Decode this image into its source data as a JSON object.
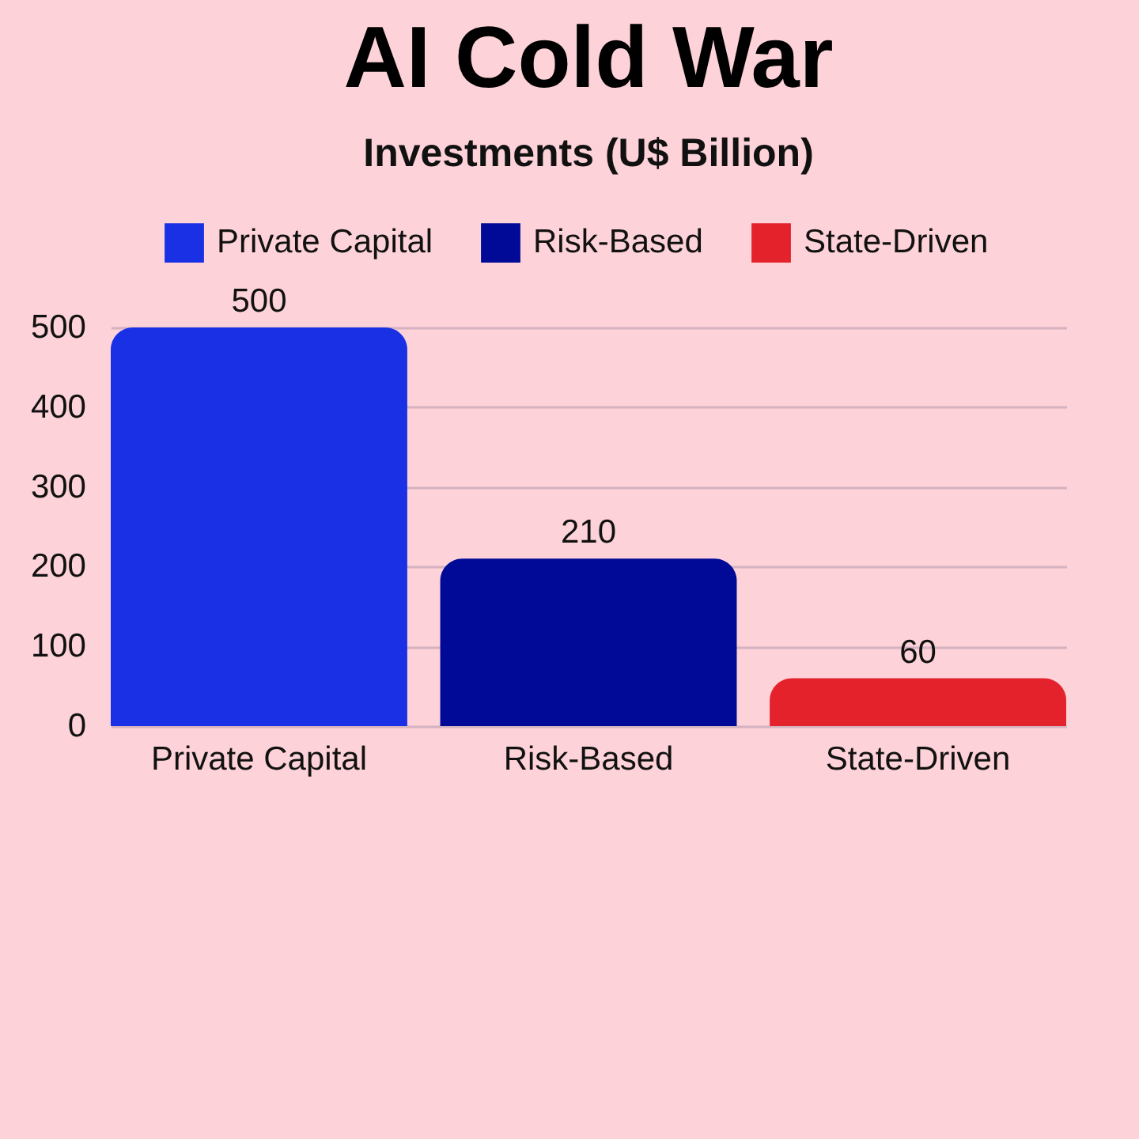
{
  "chart_data": {
    "type": "bar",
    "title": "AI Cold War",
    "subtitle": "Investments (U$ Billion)",
    "categories": [
      "Private Capital",
      "Risk-Based",
      "State-Driven"
    ],
    "series": [
      {
        "name": "Private Capital",
        "color": "#1a30e4",
        "values": [
          500,
          null,
          null
        ]
      },
      {
        "name": "Risk-Based",
        "color": "#000a96",
        "values": [
          null,
          210,
          null
        ]
      },
      {
        "name": "State-Driven",
        "color": "#e4222c",
        "values": [
          null,
          null,
          60
        ]
      }
    ],
    "stacked": true,
    "ylim": [
      0,
      500
    ],
    "yticks": [
      0,
      100,
      200,
      300,
      400,
      500
    ],
    "grid": "y",
    "legend": "top",
    "data_labels": true
  }
}
